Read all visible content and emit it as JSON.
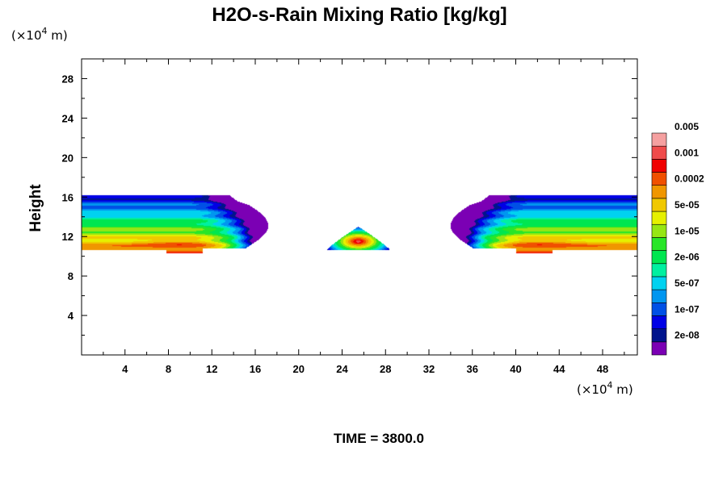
{
  "chart_data": {
    "type": "heatmap",
    "title": "H2O-s-Rain Mixing Ratio [kg/kg]",
    "ylabel": "Height",
    "x_unit_prefix": "(×10",
    "x_unit_exp": "4",
    "x_unit_suffix": " m)",
    "y_unit_prefix": "(×10",
    "y_unit_exp": "4",
    "y_unit_suffix": " m)",
    "footer": "TIME = 3800.0",
    "xlim": [
      0,
      51.2
    ],
    "ylim": [
      0,
      30
    ],
    "x_ticks": [
      4,
      8,
      12,
      16,
      20,
      24,
      28,
      32,
      36,
      40,
      44,
      48
    ],
    "y_ticks": [
      4,
      8,
      12,
      16,
      20,
      24,
      28
    ],
    "colorbar": {
      "colors": [
        "#7b00b4",
        "#00148c",
        "#0000e6",
        "#0050e6",
        "#0096f0",
        "#00d2f0",
        "#00f0a0",
        "#00e650",
        "#28e628",
        "#96e614",
        "#e6f000",
        "#f0c800",
        "#f09600",
        "#f05000",
        "#f00000",
        "#f04b4b",
        "#f5a0a0"
      ],
      "labels": [
        "2e-08",
        "1e-07",
        "5e-07",
        "2e-06",
        "1e-05",
        "5e-05",
        "0.0002",
        "0.001",
        "0.005"
      ]
    },
    "regions": [
      {
        "name": "left cloud band",
        "x_range": [
          0,
          17.4
        ],
        "y_range": [
          10.2,
          16.2
        ],
        "peak_level": 14,
        "peak_at": [
          9,
          11.2
        ]
      },
      {
        "name": "right cloud band",
        "x_range": [
          33.8,
          51.2
        ],
        "y_range": [
          10.2,
          16.2
        ],
        "peak_level": 14,
        "peak_at": [
          42,
          11.2
        ]
      },
      {
        "name": "central cell",
        "x_range": [
          22.8,
          28.6
        ],
        "y_range": [
          10.6,
          13.0
        ],
        "peak_level": 15,
        "peak_at": [
          25.5,
          11.5
        ]
      }
    ]
  }
}
